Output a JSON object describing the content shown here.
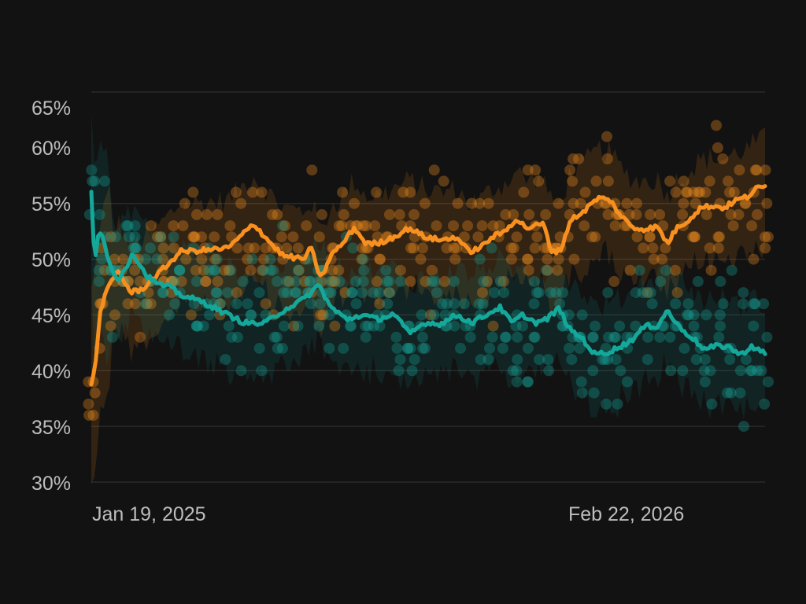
{
  "chart_data": {
    "type": "line",
    "title": "",
    "xlabel": "",
    "ylabel": "",
    "ylim": [
      30,
      65
    ],
    "grid": true,
    "legend": "none",
    "y_ticks": [
      "65%",
      "60%",
      "55%",
      "50%",
      "45%",
      "40%",
      "35%",
      "30%"
    ],
    "x_ticks": [
      "Jan 19, 2025",
      "Feb 22, 2026"
    ],
    "x_range": [
      "Jan 19, 2025",
      "Mar 2026"
    ],
    "series": [
      {
        "name": "orange-series",
        "color": "#F7901E",
        "points": [
          [
            0.0,
            38.8
          ],
          [
            0.007,
            41.0
          ],
          [
            0.014,
            45.7
          ],
          [
            0.028,
            47.8
          ],
          [
            0.04,
            49.0
          ],
          [
            0.058,
            47.0
          ],
          [
            0.075,
            47.3
          ],
          [
            0.098,
            48.6
          ],
          [
            0.133,
            50.7
          ],
          [
            0.168,
            50.8
          ],
          [
            0.203,
            51.0
          ],
          [
            0.221,
            52.0
          ],
          [
            0.241,
            53.2
          ],
          [
            0.262,
            51.7
          ],
          [
            0.285,
            50.3
          ],
          [
            0.315,
            50.0
          ],
          [
            0.326,
            51.0
          ],
          [
            0.341,
            48.2
          ],
          [
            0.355,
            50.3
          ],
          [
            0.373,
            51.4
          ],
          [
            0.39,
            52.8
          ],
          [
            0.408,
            51.4
          ],
          [
            0.425,
            51.4
          ],
          [
            0.449,
            52.0
          ],
          [
            0.472,
            52.8
          ],
          [
            0.495,
            52.0
          ],
          [
            0.519,
            51.7
          ],
          [
            0.542,
            52.0
          ],
          [
            0.56,
            50.7
          ],
          [
            0.577,
            51.0
          ],
          [
            0.595,
            52.0
          ],
          [
            0.612,
            52.4
          ],
          [
            0.63,
            53.6
          ],
          [
            0.647,
            52.8
          ],
          [
            0.671,
            53.2
          ],
          [
            0.682,
            50.8
          ],
          [
            0.696,
            50.7
          ],
          [
            0.711,
            53.5
          ],
          [
            0.729,
            54.2
          ],
          [
            0.752,
            55.5
          ],
          [
            0.77,
            55.3
          ],
          [
            0.787,
            53.8
          ],
          [
            0.805,
            52.8
          ],
          [
            0.822,
            52.7
          ],
          [
            0.84,
            52.9
          ],
          [
            0.855,
            51.4
          ],
          [
            0.869,
            52.8
          ],
          [
            0.886,
            53.5
          ],
          [
            0.904,
            54.6
          ],
          [
            0.921,
            54.8
          ],
          [
            0.939,
            54.6
          ],
          [
            0.957,
            55.3
          ],
          [
            0.974,
            55.6
          ],
          [
            0.986,
            56.3
          ],
          [
            1.0,
            56.5
          ]
        ]
      },
      {
        "name": "teal-series",
        "color": "#14A89B",
        "points": [
          [
            0.0,
            56.0
          ],
          [
            0.005,
            49.6
          ],
          [
            0.011,
            52.8
          ],
          [
            0.019,
            51.7
          ],
          [
            0.028,
            49.3
          ],
          [
            0.04,
            48.2
          ],
          [
            0.063,
            50.5
          ],
          [
            0.081,
            48.6
          ],
          [
            0.098,
            47.8
          ],
          [
            0.116,
            47.5
          ],
          [
            0.133,
            46.8
          ],
          [
            0.168,
            46.1
          ],
          [
            0.203,
            45.0
          ],
          [
            0.227,
            44.3
          ],
          [
            0.256,
            44.2
          ],
          [
            0.285,
            45.4
          ],
          [
            0.315,
            46.4
          ],
          [
            0.338,
            47.7
          ],
          [
            0.355,
            45.7
          ],
          [
            0.379,
            44.6
          ],
          [
            0.402,
            45.0
          ],
          [
            0.425,
            44.6
          ],
          [
            0.449,
            45.1
          ],
          [
            0.472,
            43.3
          ],
          [
            0.495,
            44.3
          ],
          [
            0.519,
            44.2
          ],
          [
            0.542,
            45.0
          ],
          [
            0.565,
            44.3
          ],
          [
            0.589,
            45.1
          ],
          [
            0.606,
            45.7
          ],
          [
            0.624,
            44.3
          ],
          [
            0.641,
            45.0
          ],
          [
            0.659,
            44.3
          ],
          [
            0.676,
            44.6
          ],
          [
            0.694,
            45.6
          ],
          [
            0.711,
            43.6
          ],
          [
            0.729,
            42.9
          ],
          [
            0.746,
            41.5
          ],
          [
            0.764,
            41.6
          ],
          [
            0.787,
            42.2
          ],
          [
            0.805,
            42.9
          ],
          [
            0.822,
            44.0
          ],
          [
            0.84,
            44.0
          ],
          [
            0.855,
            45.4
          ],
          [
            0.871,
            44.0
          ],
          [
            0.893,
            42.9
          ],
          [
            0.91,
            41.9
          ],
          [
            0.928,
            42.2
          ],
          [
            0.945,
            42.2
          ],
          [
            0.963,
            41.4
          ],
          [
            0.98,
            42.2
          ],
          [
            1.0,
            41.5
          ]
        ]
      }
    ],
    "annotations": "individual poll dots (semi-transparent, quantized to 1% steps) and shaded uncertainty bands around each series"
  },
  "axis": {
    "y_labels": [
      "65%",
      "60%",
      "55%",
      "50%",
      "45%",
      "40%",
      "35%",
      "30%"
    ],
    "x_labels": [
      "Jan 19, 2025",
      "Feb 22, 2026"
    ]
  },
  "colors": {
    "background": "#121212",
    "grid": "#2a2a2a",
    "orange": "#F7901E",
    "teal": "#14A89B",
    "label": "#bdbdbd"
  }
}
